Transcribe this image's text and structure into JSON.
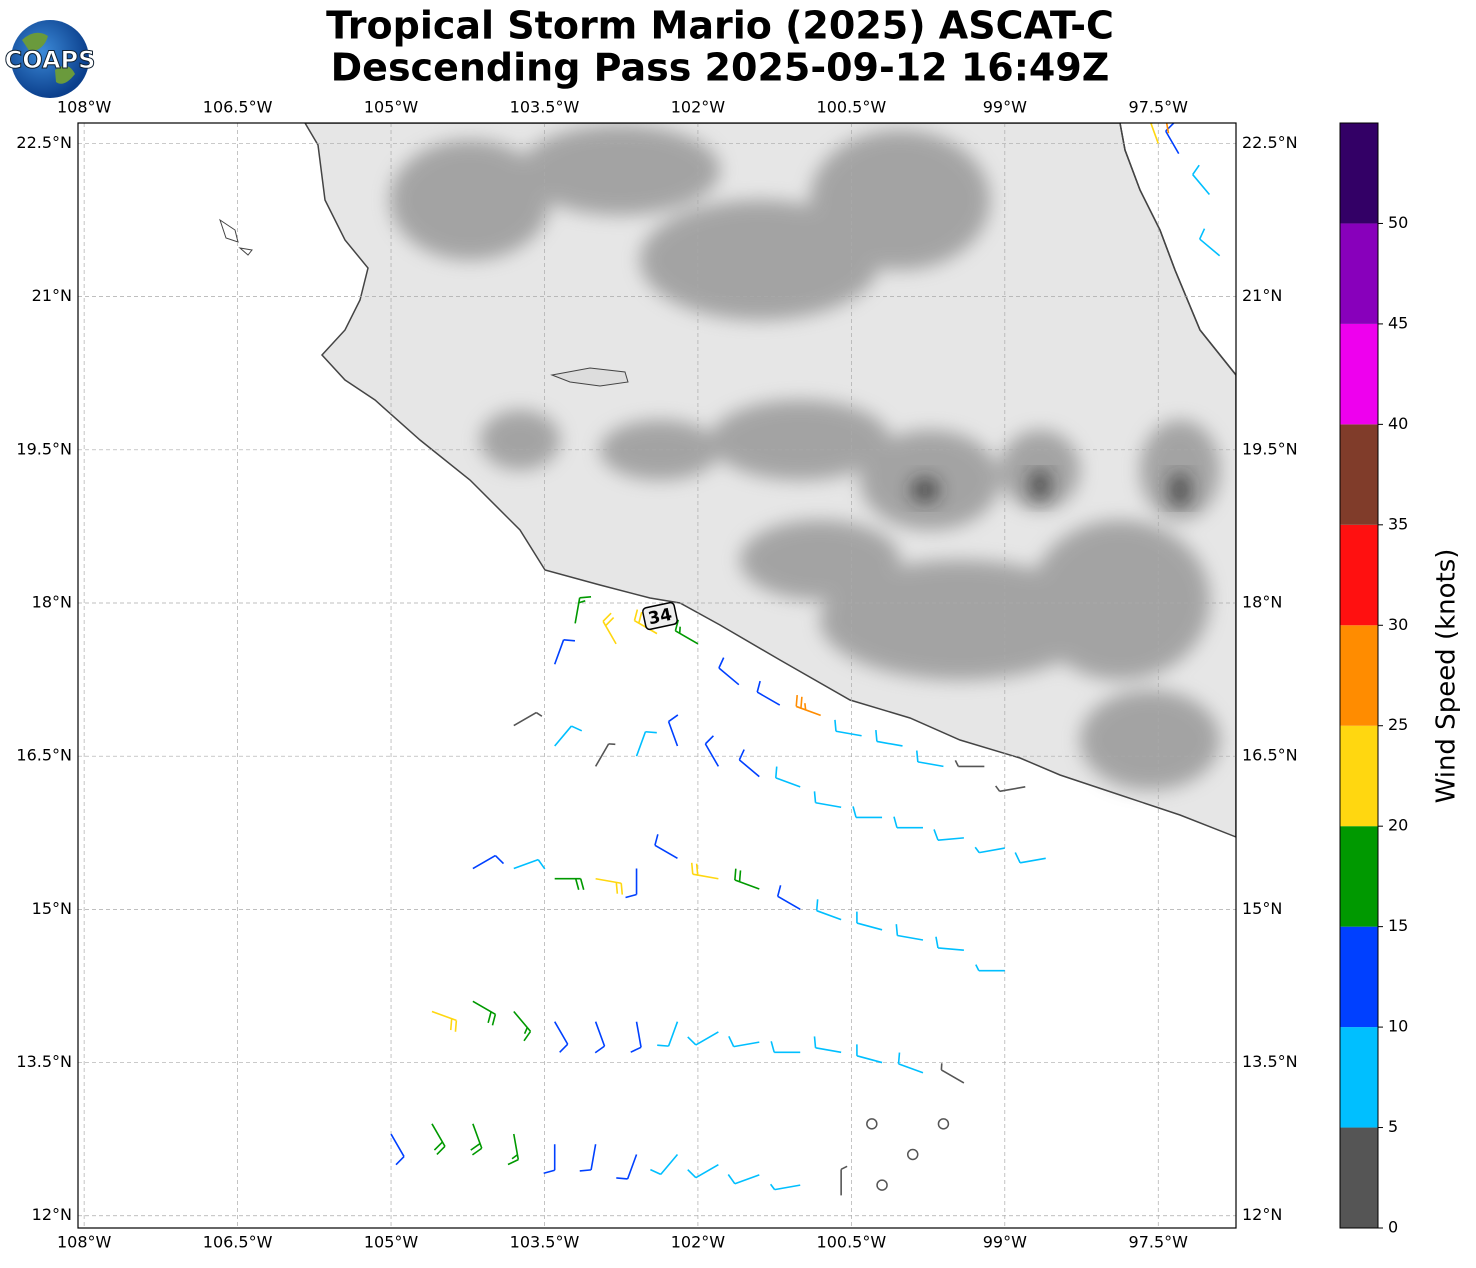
{
  "header": {
    "title": [
      "Tropical Storm Mario (2025) ASCAT-C",
      "Descending Pass 2025-09-12 16:49Z"
    ],
    "logo": "COAPS"
  },
  "map": {
    "type": "wind-barbs",
    "xlim": [
      -108.06,
      -96.74
    ],
    "ylim": [
      11.88,
      22.7
    ],
    "xticks": [
      {
        "value": -108,
        "label": "108°W"
      },
      {
        "value": -106.5,
        "label": "106.5°W"
      },
      {
        "value": -105,
        "label": "105°W"
      },
      {
        "value": -103.5,
        "label": "103.5°W"
      },
      {
        "value": -102,
        "label": "102°W"
      },
      {
        "value": -100.5,
        "label": "100.5°W"
      },
      {
        "value": -99,
        "label": "99°W"
      },
      {
        "value": -97.5,
        "label": "97.5°W"
      }
    ],
    "yticks": [
      {
        "value": 12,
        "label": "12°N"
      },
      {
        "value": 13.5,
        "label": "13.5°N"
      },
      {
        "value": 15,
        "label": "15°N"
      },
      {
        "value": 16.5,
        "label": "16.5°N"
      },
      {
        "value": 18,
        "label": "18°N"
      },
      {
        "value": 19.5,
        "label": "19.5°N"
      },
      {
        "value": 21,
        "label": "21°N"
      },
      {
        "value": 22.5,
        "label": "22.5°N"
      }
    ],
    "grid": true,
    "annotation": "34",
    "barbs": [
      [
        -103.4,
        17.4,
        10,
        20
      ],
      [
        -103.2,
        17.8,
        15,
        10
      ],
      [
        -102.8,
        17.6,
        20,
        330
      ],
      [
        -102.4,
        17.7,
        22,
        300
      ],
      [
        -102.0,
        17.6,
        15,
        300
      ],
      [
        -101.6,
        17.2,
        12,
        310
      ],
      [
        -101.2,
        17.0,
        10,
        300
      ],
      [
        -100.8,
        16.9,
        25,
        290
      ],
      [
        -100.4,
        16.7,
        8,
        280
      ],
      [
        -100.0,
        16.6,
        8,
        280
      ],
      [
        -99.6,
        16.4,
        8,
        280
      ],
      [
        -99.2,
        16.4,
        3,
        270
      ],
      [
        -98.8,
        16.2,
        4,
        260
      ],
      [
        -103.8,
        16.8,
        3,
        60
      ],
      [
        -103.4,
        16.6,
        8,
        40
      ],
      [
        -103.0,
        16.4,
        4,
        30
      ],
      [
        -102.6,
        16.5,
        8,
        20
      ],
      [
        -102.2,
        16.6,
        12,
        340
      ],
      [
        -101.8,
        16.4,
        10,
        330
      ],
      [
        -101.4,
        16.3,
        12,
        310
      ],
      [
        -101.0,
        16.2,
        8,
        290
      ],
      [
        -100.6,
        16.0,
        8,
        280
      ],
      [
        -100.2,
        15.9,
        8,
        270
      ],
      [
        -99.8,
        15.8,
        8,
        270
      ],
      [
        -99.4,
        15.7,
        8,
        265
      ],
      [
        -99.0,
        15.6,
        7,
        260
      ],
      [
        -98.6,
        15.5,
        8,
        260
      ],
      [
        -104.2,
        15.4,
        10,
        60
      ],
      [
        -103.8,
        15.4,
        8,
        70
      ],
      [
        -103.4,
        15.3,
        18,
        90
      ],
      [
        -103.0,
        15.3,
        22,
        100
      ],
      [
        -102.6,
        15.4,
        10,
        180
      ],
      [
        -102.2,
        15.5,
        12,
        300
      ],
      [
        -101.8,
        15.3,
        22,
        280
      ],
      [
        -101.4,
        15.2,
        18,
        290
      ],
      [
        -101.0,
        15.0,
        12,
        300
      ],
      [
        -100.6,
        14.9,
        8,
        290
      ],
      [
        -100.2,
        14.8,
        8,
        285
      ],
      [
        -99.8,
        14.7,
        8,
        280
      ],
      [
        -99.4,
        14.6,
        8,
        275
      ],
      [
        -99.0,
        14.4,
        7,
        270
      ],
      [
        -104.6,
        14.0,
        22,
        110
      ],
      [
        -104.2,
        14.1,
        18,
        120
      ],
      [
        -103.8,
        14.0,
        15,
        140
      ],
      [
        -103.4,
        13.9,
        12,
        150
      ],
      [
        -103.0,
        13.9,
        12,
        160
      ],
      [
        -102.6,
        13.9,
        12,
        170
      ],
      [
        -102.2,
        13.9,
        8,
        200
      ],
      [
        -101.8,
        13.8,
        8,
        240
      ],
      [
        -101.4,
        13.7,
        8,
        260
      ],
      [
        -101.0,
        13.6,
        8,
        270
      ],
      [
        -100.6,
        13.6,
        8,
        280
      ],
      [
        -100.2,
        13.5,
        8,
        285
      ],
      [
        -99.8,
        13.4,
        8,
        290
      ],
      [
        -99.4,
        13.3,
        4,
        300
      ],
      [
        -105.0,
        12.8,
        12,
        150
      ],
      [
        -104.6,
        12.9,
        18,
        150
      ],
      [
        -104.2,
        12.9,
        18,
        160
      ],
      [
        -103.8,
        12.8,
        15,
        170
      ],
      [
        -103.4,
        12.7,
        12,
        180
      ],
      [
        -103.0,
        12.7,
        12,
        190
      ],
      [
        -102.6,
        12.6,
        10,
        200
      ],
      [
        -102.2,
        12.6,
        8,
        220
      ],
      [
        -101.8,
        12.5,
        8,
        240
      ],
      [
        -101.4,
        12.4,
        8,
        250
      ],
      [
        -101.0,
        12.3,
        6,
        260
      ],
      [
        -100.6,
        12.2,
        3,
        0
      ],
      [
        -100.2,
        12.3,
        0,
        0
      ],
      [
        -99.9,
        12.6,
        0,
        0
      ],
      [
        -99.6,
        12.9,
        0,
        0
      ],
      [
        -100.3,
        12.9,
        0,
        0
      ],
      [
        -97.3,
        22.4,
        12,
        330
      ],
      [
        -97.0,
        22.0,
        8,
        320
      ],
      [
        -96.9,
        21.4,
        8,
        310
      ],
      [
        -97.5,
        22.5,
        20,
        340
      ],
      [
        -97.4,
        22.6,
        27,
        350
      ]
    ]
  },
  "colorbar": {
    "label": "Wind Speed (knots)",
    "lim": [
      0,
      55
    ],
    "ticks": [
      0,
      5,
      10,
      15,
      20,
      25,
      30,
      35,
      40,
      45,
      50
    ],
    "colors": [
      "#555555",
      "#00bfff",
      "#0040ff",
      "#009900",
      "#ffd710",
      "#ff8c00",
      "#ff1010",
      "#803c2a",
      "#ee00ee",
      "#8800bb",
      "#330066"
    ]
  }
}
